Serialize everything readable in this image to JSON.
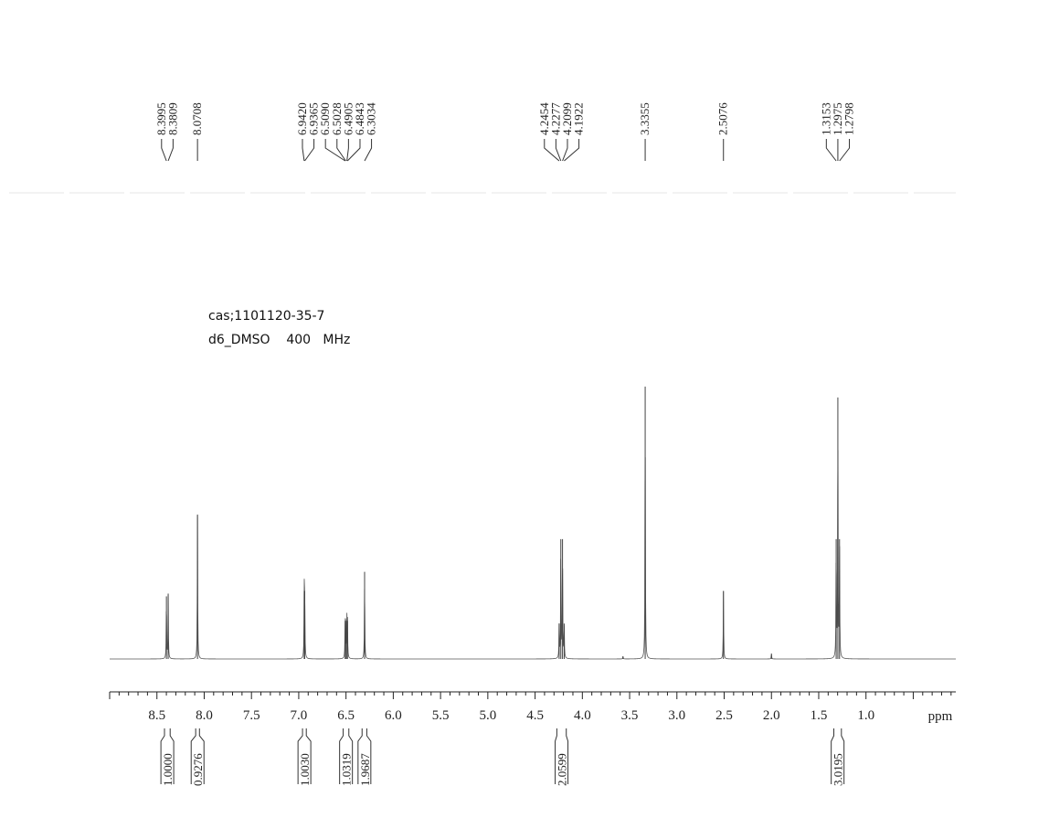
{
  "annotation": {
    "cas": "cas;1101120-35-7",
    "conditions": "d6_DMSO    400   MHz"
  },
  "chart_data": {
    "type": "line",
    "title": "",
    "xlabel": "ppm",
    "xlim": [
      9.0,
      0.05
    ],
    "x_reversed": true,
    "ylim": [
      0,
      1
    ],
    "x_ticks": [
      8.5,
      8.0,
      7.5,
      7.0,
      6.5,
      6.0,
      5.5,
      5.0,
      4.5,
      4.0,
      3.5,
      3.0,
      2.5,
      2.0,
      1.5,
      1.0
    ],
    "x_tick_labels": [
      "8.5",
      "8.0",
      "7.5",
      "7.0",
      "6.5",
      "6.0",
      "5.5",
      "5.0",
      "4.5",
      "4.0",
      "3.5",
      "3.0",
      "2.5",
      "2.0",
      "1.5",
      "1.0"
    ],
    "peak_labels": [
      {
        "group": [
          8.3995,
          8.3809
        ],
        "labels": [
          "8.3995",
          "8.3809"
        ]
      },
      {
        "group": [
          8.0708
        ],
        "labels": [
          "8.0708"
        ]
      },
      {
        "group": [
          6.942,
          6.9365,
          6.509,
          6.5028,
          6.4905,
          6.4843,
          6.3034
        ],
        "labels": [
          "6.9420",
          "6.9365",
          "6.5090",
          "6.5028",
          "6.4905",
          "6.4843",
          "6.3034"
        ]
      },
      {
        "group": [
          4.2454,
          4.2277,
          4.2099,
          4.1922
        ],
        "labels": [
          "4.2454",
          "4.2277",
          "4.2099",
          "4.1922"
        ]
      },
      {
        "group": [
          3.3355
        ],
        "labels": [
          "3.3355"
        ]
      },
      {
        "group": [
          2.5076
        ],
        "labels": [
          "2.5076"
        ]
      },
      {
        "group": [
          1.3153,
          1.2975,
          1.2798
        ],
        "labels": [
          "1.3153",
          "1.2975",
          "1.2798"
        ]
      }
    ],
    "peaks": [
      {
        "ppm": 8.3995,
        "height": 0.23
      },
      {
        "ppm": 8.3809,
        "height": 0.24
      },
      {
        "ppm": 8.0708,
        "height": 0.53
      },
      {
        "ppm": 6.942,
        "height": 0.25
      },
      {
        "ppm": 6.9365,
        "height": 0.25
      },
      {
        "ppm": 6.509,
        "height": 0.14
      },
      {
        "ppm": 6.5028,
        "height": 0.14
      },
      {
        "ppm": 6.4905,
        "height": 0.14
      },
      {
        "ppm": 6.4843,
        "height": 0.14
      },
      {
        "ppm": 6.3034,
        "height": 0.32
      },
      {
        "ppm": 4.2454,
        "height": 0.13
      },
      {
        "ppm": 4.2277,
        "height": 0.44
      },
      {
        "ppm": 4.2099,
        "height": 0.44
      },
      {
        "ppm": 4.1922,
        "height": 0.13
      },
      {
        "ppm": 3.57,
        "height": 0.01
      },
      {
        "ppm": 3.3355,
        "height": 1.0
      },
      {
        "ppm": 2.5076,
        "height": 0.25
      },
      {
        "ppm": 2.0,
        "height": 0.02
      },
      {
        "ppm": 1.3153,
        "height": 0.44
      },
      {
        "ppm": 1.2975,
        "height": 0.96
      },
      {
        "ppm": 1.2798,
        "height": 0.44
      }
    ],
    "integrals": [
      {
        "from": 8.42,
        "to": 8.36,
        "value": "1.0000"
      },
      {
        "from": 8.09,
        "to": 8.05,
        "value": "0.9276"
      },
      {
        "from": 6.96,
        "to": 6.92,
        "value": "1.0030"
      },
      {
        "from": 6.53,
        "to": 6.47,
        "value": "1.0319"
      },
      {
        "from": 6.33,
        "to": 6.28,
        "value": "1.9687"
      },
      {
        "from": 4.27,
        "to": 4.17,
        "value": "2.0599"
      },
      {
        "from": 1.34,
        "to": 1.26,
        "value": "3.0195"
      }
    ]
  }
}
